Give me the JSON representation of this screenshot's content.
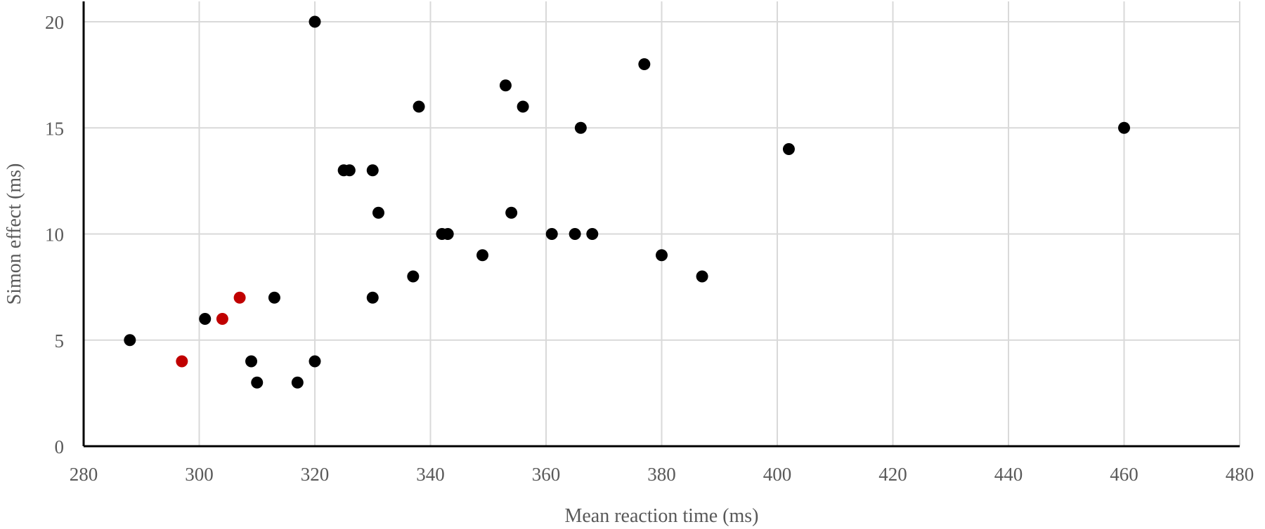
{
  "chart_data": {
    "type": "scatter",
    "title": "",
    "xlabel": "Mean reaction time (ms)",
    "ylabel": "Simon effect (ms)",
    "xlim": [
      280,
      480
    ],
    "ylim": [
      0,
      20
    ],
    "x_ticks": [
      "280",
      "300",
      "320",
      "340",
      "360",
      "380",
      "400",
      "420",
      "440",
      "460",
      "480"
    ],
    "y_ticks": [
      "0",
      "5",
      "10",
      "15",
      "20"
    ],
    "grid": true,
    "legend": "none",
    "series": [
      {
        "color": "#000000",
        "points": [
          {
            "x": 288,
            "y": 5
          },
          {
            "x": 301,
            "y": 6
          },
          {
            "x": 309,
            "y": 4
          },
          {
            "x": 310,
            "y": 3
          },
          {
            "x": 313,
            "y": 7
          },
          {
            "x": 317,
            "y": 3
          },
          {
            "x": 320,
            "y": 20
          },
          {
            "x": 320,
            "y": 4
          },
          {
            "x": 325,
            "y": 13
          },
          {
            "x": 326,
            "y": 13
          },
          {
            "x": 330,
            "y": 13
          },
          {
            "x": 330,
            "y": 7
          },
          {
            "x": 331,
            "y": 11
          },
          {
            "x": 337,
            "y": 8
          },
          {
            "x": 338,
            "y": 16
          },
          {
            "x": 342,
            "y": 10
          },
          {
            "x": 343,
            "y": 10
          },
          {
            "x": 349,
            "y": 9
          },
          {
            "x": 353,
            "y": 17
          },
          {
            "x": 354,
            "y": 11
          },
          {
            "x": 356,
            "y": 16
          },
          {
            "x": 361,
            "y": 10
          },
          {
            "x": 365,
            "y": 10
          },
          {
            "x": 366,
            "y": 15
          },
          {
            "x": 368,
            "y": 10
          },
          {
            "x": 377,
            "y": 18
          },
          {
            "x": 380,
            "y": 9
          },
          {
            "x": 387,
            "y": 8
          },
          {
            "x": 402,
            "y": 14
          },
          {
            "x": 460,
            "y": 15
          }
        ]
      },
      {
        "color": "#c00000",
        "points": [
          {
            "x": 297,
            "y": 4
          },
          {
            "x": 304,
            "y": 6
          },
          {
            "x": 307,
            "y": 7
          }
        ]
      }
    ]
  }
}
